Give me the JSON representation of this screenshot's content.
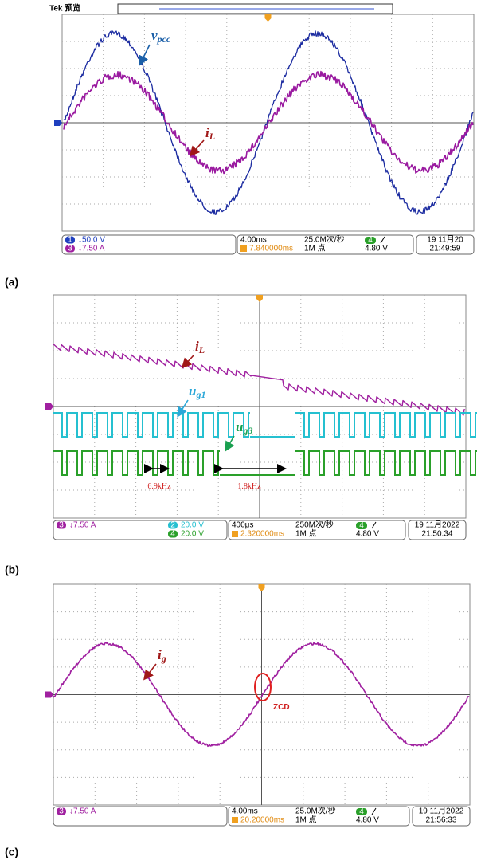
{
  "panels": [
    {
      "label": "(a)",
      "header": "Tek 预览",
      "annotations": [
        {
          "text": "v",
          "sub": "pcc"
        },
        {
          "text": "i",
          "sub": "L"
        }
      ],
      "channels": [
        {
          "num": "1",
          "scale": "↓50.0 V"
        },
        {
          "num": "3",
          "scale": "↓7.50 A"
        }
      ],
      "status": {
        "time": "4.00ms",
        "rate": "25.0M次/秒",
        "trigger": "7.840000ms",
        "points": "1M 点",
        "trig_ch": "4",
        "trig_level": "4.80 V",
        "date": "19 11月20",
        "clock": "21:49:59"
      }
    },
    {
      "label": "(b)",
      "annotations": [
        {
          "text": "i",
          "sub": "L"
        },
        {
          "text": "u",
          "sub": "g1"
        },
        {
          "text": "u",
          "sub": "g3"
        },
        {
          "text": "6.9kHz"
        },
        {
          "text": "1.8kHz"
        }
      ],
      "channels": [
        {
          "num": "3",
          "scale": "↓7.50 A"
        },
        {
          "num": "2",
          "scale": "20.0 V"
        },
        {
          "num": "4",
          "scale": "20.0 V"
        }
      ],
      "status": {
        "time": "400μs",
        "rate": "250M次/秒",
        "trigger": "2.320000ms",
        "points": "1M 点",
        "trig_ch": "4",
        "trig_level": "4.80 V",
        "date": "19 11月2022",
        "clock": "21:50:34"
      }
    },
    {
      "label": "(c)",
      "annotations": [
        {
          "text": "i",
          "sub": "g"
        },
        {
          "text": "ZCD"
        }
      ],
      "channels": [
        {
          "num": "3",
          "scale": "↓7.50 A"
        }
      ],
      "status": {
        "time": "4.00ms",
        "rate": "25.0M次/秒",
        "trigger": "20.20000ms",
        "points": "1M 点",
        "trig_ch": "4",
        "trig_level": "4.80 V",
        "date": "19 11月2022",
        "clock": "21:56:33"
      }
    }
  ]
}
